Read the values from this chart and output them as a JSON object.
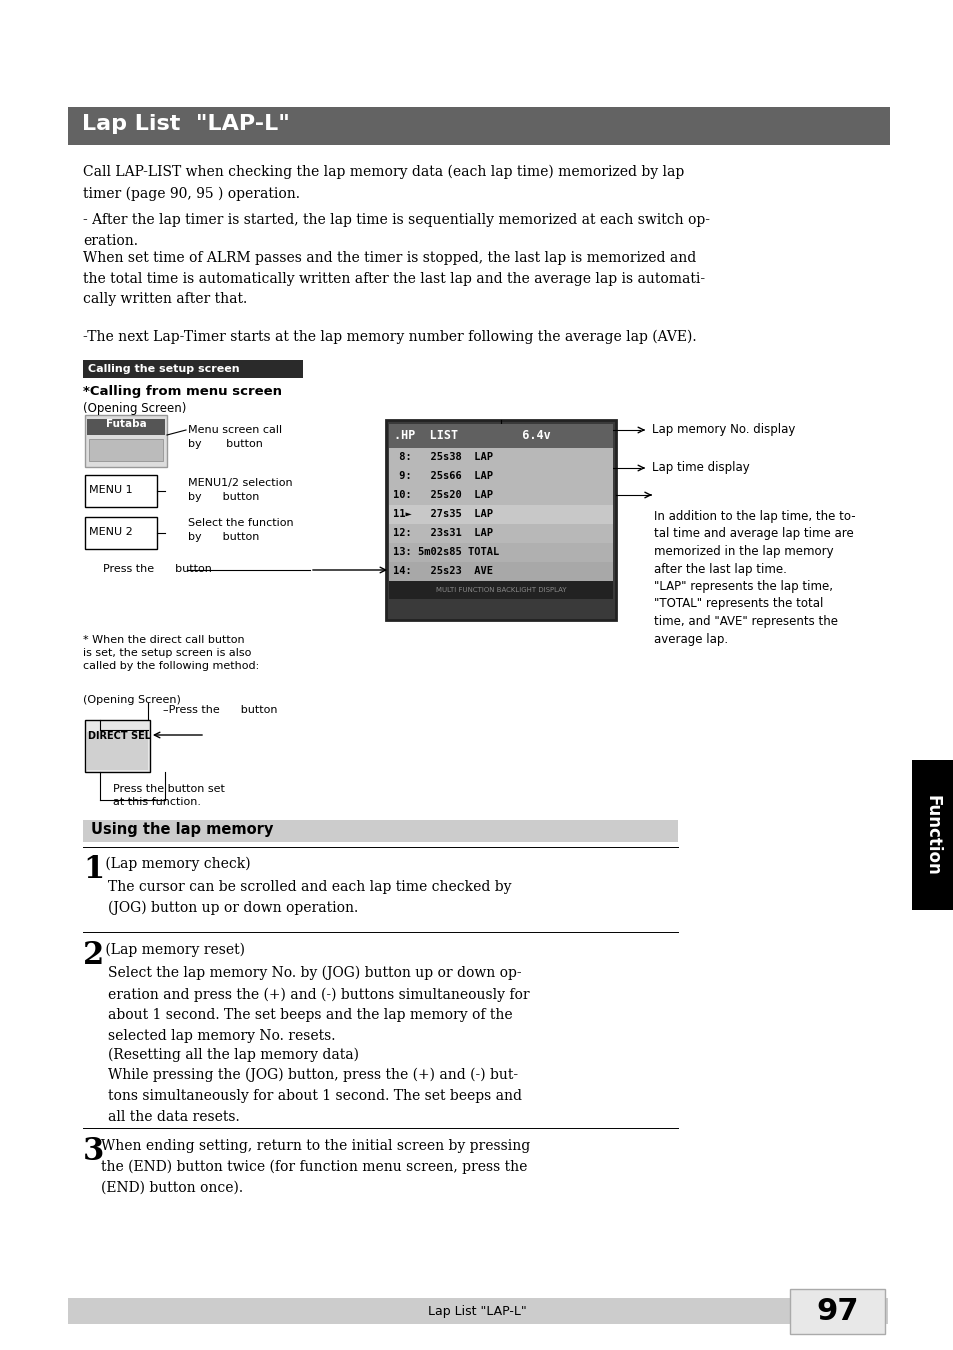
{
  "page_bg": "#ffffff",
  "header_bar_color": "#636363",
  "header_text": "Lap List  \"LAP-L\"",
  "header_text_color": "#ffffff",
  "section_bar_color": "#cccccc",
  "body_text_color": "#000000",
  "footer_bg": "#cccccc",
  "footer_text": "Lap List \"LAP-L\"",
  "page_number": "97",
  "right_tab_text": "Function",
  "right_tab_bg": "#000000",
  "right_tab_text_color": "#ffffff",
  "para1": "Call LAP-LIST when checking the lap memory data (each lap time) memorized by lap\ntimer (page 90, 95 ) operation.",
  "para2": "- After the lap timer is started, the lap time is sequentially memorized at each switch op-\neration.",
  "para3": "When set time of ALRM passes and the timer is stopped, the last lap is memorized and\nthe total time is automatically written after the last lap and the average lap is automati-\ncally written after that.",
  "para4": "-The next Lap-Timer starts at the lap memory number following the average lap (AVE).",
  "calling_setup_label": "Calling the setup screen",
  "calling_from_menu": "*Calling from menu screen",
  "opening_screen1": "(Opening Screen)",
  "menu1_label": "MENU 1",
  "menu2_label": "MENU 2",
  "menu_screen_call": "Menu screen call\nby       button",
  "menu12_sel": "MENU1/2 selection\nby      button",
  "select_func": "Select the function\nby      button",
  "press_jog1": "Press the      button",
  "direct_call_note": "* When the direct call button\nis set, the setup screen is also\ncalled by the following method:",
  "opening_screen2": "(Opening Screen)",
  "press_on_btn": "Press the      button",
  "direct_sel_label": "DIRECT SEL",
  "press_btn_set": "Press the button set\nat this function.",
  "lap_mem_note": "In addition to the lap time, the to-\ntal time and average lap time are\nmemorized in the lap memory\nafter the last lap time.\n\"LAP\" represents the lap time,\n\"TOTAL\" represents the total\ntime, and \"AVE\" represents the\naverage lap.",
  "lap_mem_no_display": "Lap memory No. display",
  "lap_time_display": "Lap time display",
  "using_lap_memory": "Using the lap memory",
  "step1_big": "1",
  "step1_label": " (Lap memory check)",
  "step1_text": "The cursor can be scrolled and each lap time checked by\n(JOG) button up or down operation.",
  "step2_big": "2",
  "step2_label": " (Lap memory reset)",
  "step2_text": "Select the lap memory No. by (JOG) button up or down op-\neration and press the (+) and (-) buttons simultaneously for\nabout 1 second. The set beeps and the lap memory of the\nselected lap memory No. resets.",
  "resetting_label": "(Resetting all the lap memory data)",
  "resetting_text": "While pressing the (JOG) button, press the (+) and (-) but-\ntons simultaneously for about 1 second. The set beeps and\nall the data resets.",
  "step3_big": "3",
  "step3_text": "When ending setting, return to the initial screen by pressing\nthe (END) button twice (for function menu screen, press the\n(END) button once).",
  "display_rows": [
    " 8:   25s38  LAP",
    " 9:   25s66  LAP",
    "10:   25s20  LAP",
    "11►   27s35  LAP",
    "12:   23s31  LAP",
    "13: 5m02s85 TOTAL",
    "14:   25s23  AVE"
  ],
  "display_header": ".HP  LIST         6.4v",
  "display_footer": "MULTI FUNCTION BACKLIGHT DISPLAY"
}
